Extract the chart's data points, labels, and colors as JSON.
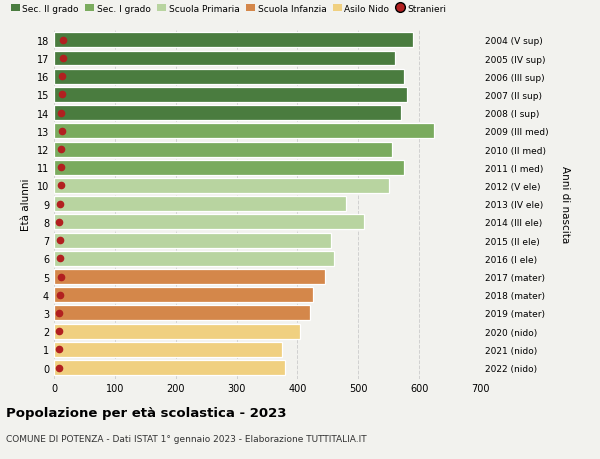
{
  "ages": [
    18,
    17,
    16,
    15,
    14,
    13,
    12,
    11,
    10,
    9,
    8,
    7,
    6,
    5,
    4,
    3,
    2,
    1,
    0
  ],
  "right_labels": [
    "2004 (V sup)",
    "2005 (IV sup)",
    "2006 (III sup)",
    "2007 (II sup)",
    "2008 (I sup)",
    "2009 (III med)",
    "2010 (II med)",
    "2011 (I med)",
    "2012 (V ele)",
    "2013 (IV ele)",
    "2014 (III ele)",
    "2015 (II ele)",
    "2016 (I ele)",
    "2017 (mater)",
    "2018 (mater)",
    "2019 (mater)",
    "2020 (nido)",
    "2021 (nido)",
    "2022 (nido)"
  ],
  "values": [
    590,
    560,
    575,
    580,
    570,
    625,
    555,
    575,
    550,
    480,
    510,
    455,
    460,
    445,
    425,
    420,
    405,
    375,
    380
  ],
  "stranieri": [
    15,
    14,
    13,
    13,
    12,
    13,
    12,
    12,
    11,
    10,
    9,
    10,
    10,
    12,
    10,
    9,
    9,
    8,
    8
  ],
  "bar_colors": [
    "#4a7c3f",
    "#4a7c3f",
    "#4a7c3f",
    "#4a7c3f",
    "#4a7c3f",
    "#7aab5e",
    "#7aab5e",
    "#7aab5e",
    "#b8d4a0",
    "#b8d4a0",
    "#b8d4a0",
    "#b8d4a0",
    "#b8d4a0",
    "#d4874a",
    "#d4874a",
    "#d4874a",
    "#f0d080",
    "#f0d080",
    "#f0d080"
  ],
  "legend_labels": [
    "Sec. II grado",
    "Sec. I grado",
    "Scuola Primaria",
    "Scuola Infanzia",
    "Asilo Nido",
    "Stranieri"
  ],
  "legend_colors": [
    "#4a7c3f",
    "#7aab5e",
    "#b8d4a0",
    "#d4874a",
    "#f0d080",
    "#b22020"
  ],
  "stranieri_color": "#b22020",
  "ylabel_label": "Età alunni",
  "right_ylabel": "Anni di nascita",
  "title": "Popolazione per età scolastica - 2023",
  "subtitle": "COMUNE DI POTENZA - Dati ISTAT 1° gennaio 2023 - Elaborazione TUTTITALIA.IT",
  "xlim": [
    0,
    700
  ],
  "background_color": "#f2f2ee",
  "grid_color": "#d0d0d0"
}
